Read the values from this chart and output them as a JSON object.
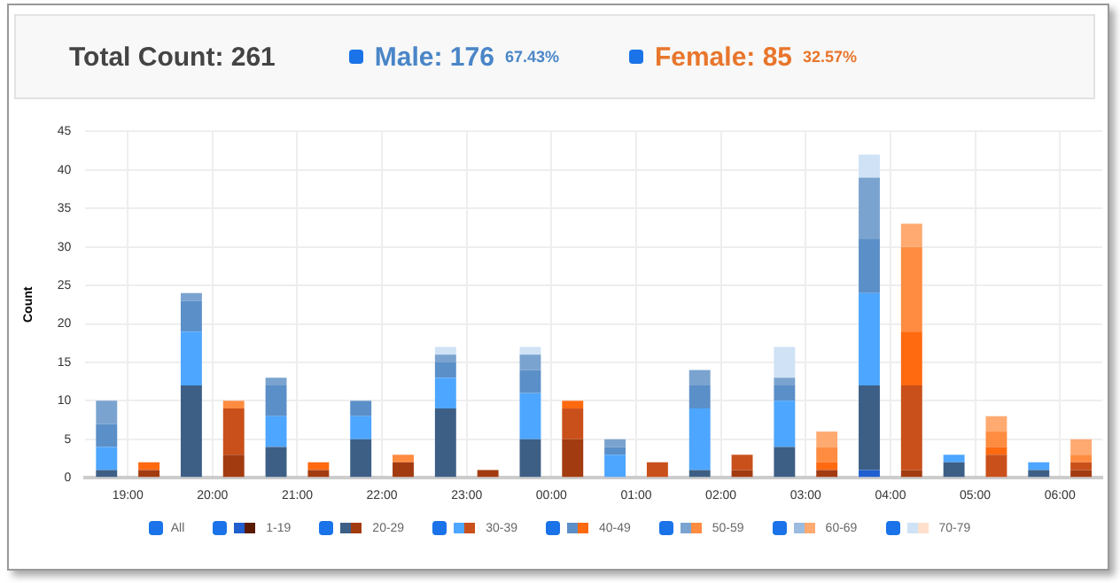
{
  "chart_data": {
    "type": "bar",
    "stacked": true,
    "ylabel": "Count",
    "legend_title": "All",
    "legend": "bottom",
    "grid": true,
    "annotations": [
      "Total Count: 261",
      "Male: 176",
      "67.43%",
      "Female: 85",
      "32.57%"
    ],
    "categories": [
      "19:00",
      null,
      "20:00",
      null,
      "21:00",
      null,
      "22:00",
      null,
      "23:00",
      null,
      "00:00",
      null,
      "01:00",
      null,
      "02:00",
      null,
      "03:00",
      null,
      "04:00",
      null,
      "05:00",
      null,
      "06:00",
      null
    ],
    "ylim": [
      0,
      45
    ],
    "yticks": [
      0,
      5,
      10,
      15,
      20,
      25,
      30,
      35,
      40,
      45
    ],
    "series": [
      {
        "name": "1-19",
        "colors": [
          "#1f5fcf",
          "#5a1a00",
          "#1f5fcf",
          "#5a1a00",
          "#1f5fcf",
          "#5a1a00",
          "#1f5fcf",
          "#5a1a00",
          "#1f5fcf",
          "#5a1a00",
          "#1f5fcf",
          "#5a1a00",
          "#1f5fcf",
          "#5a1a00",
          "#1f5fcf",
          "#5a1a00",
          "#1f5fcf",
          "#5a1a00",
          "#1f5fcf",
          "#5a1a00",
          "#1f5fcf",
          "#5a1a00",
          "#1f5fcf",
          "#5a1a00"
        ],
        "values": [
          0,
          0,
          0,
          0,
          0,
          0,
          0,
          0,
          0,
          0,
          0,
          0,
          0,
          0,
          0,
          0,
          0,
          0,
          1,
          0,
          0,
          0,
          0,
          0
        ]
      },
      {
        "name": "20-29",
        "colors": [
          "#3d5f86",
          "#a33b10",
          "#3d5f86",
          "#a33b10",
          "#3d5f86",
          "#a33b10",
          "#3d5f86",
          "#a33b10",
          "#3d5f86",
          "#a33b10",
          "#3d5f86",
          "#a33b10",
          "#3d5f86",
          "#a33b10",
          "#3d5f86",
          "#a33b10",
          "#3d5f86",
          "#a33b10",
          "#3d5f86",
          "#a33b10",
          "#3d5f86",
          "#a33b10",
          "#3d5f86",
          "#a33b10"
        ],
        "values": [
          1,
          1,
          12,
          3,
          4,
          1,
          5,
          2,
          9,
          1,
          5,
          5,
          0,
          0,
          1,
          1,
          4,
          1,
          11,
          1,
          2,
          0,
          1,
          1
        ]
      },
      {
        "name": "30-39",
        "colors": [
          "#4da6ff",
          "#c9501a",
          "#4da6ff",
          "#c9501a",
          "#4da6ff",
          "#c9501a",
          "#4da6ff",
          "#c9501a",
          "#4da6ff",
          "#c9501a",
          "#4da6ff",
          "#c9501a",
          "#4da6ff",
          "#c9501a",
          "#4da6ff",
          "#c9501a",
          "#4da6ff",
          "#c9501a",
          "#4da6ff",
          "#c9501a",
          "#4da6ff",
          "#c9501a",
          "#4da6ff",
          "#c9501a"
        ],
        "values": [
          3,
          0,
          7,
          6,
          4,
          0,
          3,
          0,
          4,
          0,
          6,
          4,
          3,
          2,
          8,
          2,
          6,
          0,
          12,
          11,
          1,
          3,
          1,
          1
        ]
      },
      {
        "name": "40-49",
        "colors": [
          "#5b8fc8",
          "#ff6a10",
          "#5b8fc8",
          "#ff6a10",
          "#5b8fc8",
          "#ff6a10",
          "#5b8fc8",
          "#ff6a10",
          "#5b8fc8",
          "#ff6a10",
          "#5b8fc8",
          "#ff6a10",
          "#5b8fc8",
          "#ff6a10",
          "#5b8fc8",
          "#ff6a10",
          "#5b8fc8",
          "#ff6a10",
          "#5b8fc8",
          "#ff6a10",
          "#5b8fc8",
          "#ff6a10",
          "#5b8fc8",
          "#ff6a10"
        ],
        "values": [
          3,
          1,
          4,
          0,
          4,
          1,
          2,
          0,
          2,
          0,
          3,
          1,
          1,
          0,
          3,
          0,
          2,
          1,
          7,
          7,
          0,
          1,
          0,
          0
        ]
      },
      {
        "name": "50-59",
        "colors": [
          "#7aa3cf",
          "#ff8c40",
          "#7aa3cf",
          "#ff8c40",
          "#7aa3cf",
          "#ff8c40",
          "#7aa3cf",
          "#ff8c40",
          "#7aa3cf",
          "#ff8c40",
          "#7aa3cf",
          "#ff8c40",
          "#7aa3cf",
          "#ff8c40",
          "#7aa3cf",
          "#ff8c40",
          "#7aa3cf",
          "#ff8c40",
          "#7aa3cf",
          "#ff8c40",
          "#7aa3cf",
          "#ff8c40",
          "#7aa3cf",
          "#ff8c40"
        ],
        "values": [
          3,
          0,
          1,
          1,
          1,
          0,
          0,
          1,
          1,
          0,
          2,
          0,
          1,
          0,
          2,
          0,
          1,
          2,
          8,
          11,
          0,
          2,
          0,
          1
        ]
      },
      {
        "name": "60-69",
        "colors": [
          "#9cbbe0",
          "#ffaa70",
          "#9cbbe0",
          "#ffaa70",
          "#9cbbe0",
          "#ffaa70",
          "#9cbbe0",
          "#ffaa70",
          "#9cbbe0",
          "#ffaa70",
          "#9cbbe0",
          "#ffaa70",
          "#9cbbe0",
          "#ffaa70",
          "#9cbbe0",
          "#ffaa70",
          "#9cbbe0",
          "#ffaa70",
          "#9cbbe0",
          "#ffaa70",
          "#9cbbe0",
          "#ffaa70",
          "#9cbbe0",
          "#ffaa70"
        ],
        "values": [
          0,
          0,
          0,
          0,
          0,
          0,
          0,
          0,
          0,
          0,
          0,
          0,
          0,
          0,
          0,
          0,
          0,
          2,
          0,
          3,
          0,
          2,
          0,
          2
        ]
      },
      {
        "name": "70-79",
        "colors": [
          "#cfe2f6",
          "#ffe0cc",
          "#cfe2f6",
          "#ffe0cc",
          "#cfe2f6",
          "#ffe0cc",
          "#cfe2f6",
          "#ffe0cc",
          "#cfe2f6",
          "#ffe0cc",
          "#cfe2f6",
          "#ffe0cc",
          "#cfe2f6",
          "#ffe0cc",
          "#cfe2f6",
          "#ffe0cc",
          "#cfe2f6",
          "#ffe0cc",
          "#cfe2f6",
          "#ffe0cc",
          "#cfe2f6",
          "#ffe0cc",
          "#cfe2f6",
          "#ffe0cc"
        ],
        "values": [
          0,
          0,
          0,
          0,
          0,
          0,
          0,
          0,
          1,
          0,
          1,
          0,
          0,
          0,
          0,
          0,
          4,
          0,
          3,
          0,
          0,
          0,
          0,
          0
        ]
      }
    ]
  }
}
